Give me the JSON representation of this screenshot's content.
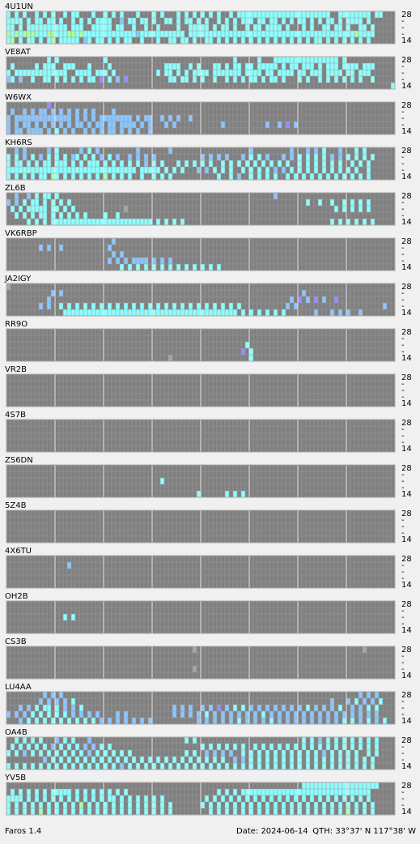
{
  "app": {
    "name": "Faros 1.4",
    "date": "Date: 2024-06-14",
    "qth": "QTH: 33°37' N  117°38' W"
  },
  "band_labels": [
    "28",
    "-",
    "-",
    "-",
    "14"
  ],
  "level_colors": [
    "#a6a6a6",
    "#9a8cff",
    "#8cc6ff",
    "#8cffff",
    "#a8ffa8"
  ],
  "panels": [
    {
      "name": "4U1UN",
      "rows": [
        "3.3.3..3.3.3..3.33...3..3.3.3...3...3.3...3.3.3.3.3.3..3.33333333333333333333333..33333333.33",
        "3333.3.33.33.3..3.3.3.3333..2.33.33.3..33.3.33.3.3..3.3.3.333.33.33.3.3.33.3.3.33.3.3333.3..",
        "33.3.3333333333.333..33333.33..3..3..3....3..33333.3.33.3..3.33.3333.3...3.3..33.33.3..33.3.",
        "43434443334433344343333333333333233333333333.3333333333333333333333333333333333333333343333.",
        "34.3.33.3.34.33333.23.33.3.3.33..3...3..33.33.3..33.3.3.3.3.3.3.3.3.3.3.3.3.33.3.3.3.3.3.3."
      ]
    },
    {
      "name": "VE8AT",
      "rows": [
        "..........3.3...........3...............................3.....3...3333333333333333.3.......",
        ".3.....3.333..333...3....3.............3333..3.3...33.3.33.33.33333.3.33.333.3.333.3333.333.",
        "3.3333333333333..3333.333.3..........3.33.3.3.3333.3333333.3333.33.3333.33.333.3333.33.333..",
        "23.2..3..33.3.3.3.3.33.1.3.2.1..........33.33.3.3..3..3.3.3.33.3.33.3...3.3..3.3.3.3.3.3..3.",
        "...............................................................................................3"
      ]
    },
    {
      "name": "W6WX",
      "rows": [
        "..........1...................................................................................",
        ".2..2.2.22.2.2.2.2.2.2....2.......................................................................",
        "2.22222222222222.2.2.2.22222222.2.22..2.2.2..2............................................",
        "2.2.22.2.2.2.2.2.22.2.22.22.2222.2.2...2.2...........2..........2..2.1.2.....................",
        "2.22.2222.2.3.2.2..2.2.2.22.2.2.2..2......................................................"
      ]
    },
    {
      "name": "KH6RS",
      "rows": [
        "..2.2.....2.3.....2.3.2.........2.......2...................2.........2...2.2.3...2...3.3...",
        "3.3.2.3.2.3.3.3.23.3.3.2.3.2..2.2.2.2...........2.2.2.2...2.3.3.2...2.2.3.3.3.3.2.2.3.3.3.3",
        "3.33.3.3.33.333.3.3.333.3.3.3.3.3.2.3.3...3.3.3.3.3..3.3.3.3.3.3.3.3.3..3.3.3.3.3.3..3.3.3.",
        "33333333333333333333333333333333.33333.3.3.3...2.2.3.3.3..3.3.3.3.2.2.3.3.3.3.3.3.3.3.3..3",
        "3.3.3.3.33.43.3.3.3.3.3.4.3.3.3..3..3.3.3...........3..3.2..3.3.3.3..3.3.3.3.3.3.3.3.3.3.3."
      ]
    },
    {
      "name": "ZL6B",
      "rows": [
        "..2..2.3.33.3.....................................................2.....................",
        "2.2.3.33.3.3.3.3..........................................................3..3..3..3.3.3.3",
        ".3.3.33333.33.3.3............0...................................................3.3.3.3.3.",
        "..3.3.3.33.3.3.3.3.3....3..3...............................................................",
        ".....3.3.3.3333333333333333333333333.3.3.3.3....................................3.3.3.3.3.3"
      ]
    },
    {
      "name": "VK6RBP",
      "rows": [
        "..........................2.....................................................",
        "........2.2..2...........2......................................................",
        "..........................2.2..............................................",
        ".........................2.2.2.2222.2.2.2...................................",
        "............................3.3.3.3.3.3.3.3.3.3.3.3.3........................"
      ]
    },
    {
      "name": "JA2IGY",
      "rows": [
        "0..............................................................................",
        "...........2.2...........................................................2.....................",
        "..........2...........................................................2.1.2.1.2..1..........",
        "........2.2..3.3.3.3.3.3.3.3.3.3.3.3.3.3.3.3.3.3.3.3.3.3.3...........2.2.....................2",
        "..............3333333333333333333333333333333333333333333.3.3.3.3.3.3.......2...2.2.2..2......"
      ]
    },
    {
      "name": "RR9O",
      "rows": [
        "..............................................................",
        "..............................................................",
        "...........................................................3...",
        "..........................................................1.3...",
        "........................................0...................3.."
      ]
    },
    {
      "name": "VR2B",
      "rows": [
        "......",
        "......",
        "......",
        "......",
        "......"
      ]
    },
    {
      "name": "4S7B",
      "rows": [
        "......",
        "......",
        "......",
        "......",
        "......"
      ]
    },
    {
      "name": "ZS6DN",
      "rows": [
        "......................................",
        "......................................",
        "......................................3.................",
        "...........................................................",
        "...............................................3......3.3.3....."
      ]
    },
    {
      "name": "5Z4B",
      "rows": [
        "......",
        "......",
        "......",
        "......",
        "......"
      ]
    },
    {
      "name": "4X6TU",
      "rows": [
        ".........................",
        "...............2.........",
        ".........................",
        ".........................",
        "........................."
      ]
    },
    {
      "name": "OH2B",
      "rows": [
        ".........................",
        ".........................",
        "..............3.3........",
        ".........................",
        "........................."
      ]
    },
    {
      "name": "CS3B",
      "rows": [
        "..............................................0.........................................0....",
        ".............................................................................................",
        ".............................................................................................",
        "..............................................0..............................................",
        "............................................................................................."
      ]
    },
    {
      "name": "LU4AA",
      "rows": [
        ".........2.2.2.........................................................................2.2.2.",
        "........2.2.2.2.3...............................................................2...2.3.2.2.3",
        "...2.2.3.33.3.2.2.3......................2.2.2..2.2.1.2.3.3.2.2.2.2.2.2.2.3.2.2.2.3..2.2.3.3",
        "2.2.2.3.3.3.3.3.2.2.2.2....2.2...........2.2.2.2.3.2.2.2.2.2.2.3.2.2.2.2.2.2.2.2.2.2.2.2.2.2",
        "...2.3.3.3.3.3.3.3.3.3.2.2.2.2.2.2.2...........2.2.2.2.2.3.2.2.2.3.2.2.2.2.2.2.2.2.3.3.2.3.2.3"
      ]
    },
    {
      "name": "OA4B",
      "rows": [
        "..3.3.3.3...2.3.3...2.......................3.3..........................3.3.2.3.3.3.3.3.3.3.",
        ".3.3.3.3.3.2.3.3.3.2.2.3.3......................3.3.3.3.3.3..3.3.3.3.3.3.3.3.3.3.3.3.3.3.3.3",
        "3.3.2.3.3.3.3.3.3.3.2.3.3.3.3.3.............3.3..2.2.2.2..3.3.3.3.3.3.3.3.3.3.2.3.3.3.3..3.3",
        ".........2.3.3.3.3.3.3.3.3.3.3.3.3.3.3.3.3.3.3.3.3.3.3..2.2.3.3.3.3.3.3.3.3.3.3.3.3.3.3.3.3",
        "3.3.3.3.3.3.3.3.3.3.3.3.3.3.2.3.3.3.3.3.3.3.3.3.3.3.3.3.3.3.3.3.3.3.3.3.3.3.3.3.3.3.3.3.3.3"
      ]
    },
    {
      "name": "YV5B",
      "rows": [
        ".........................................................................3333333333333333333",
        ".3.3.3.3.3.33333.3.3.3.3.3.3.3......................3.3.3.33333333333333333333333333333333",
        "3333.3.3.3.3.3.3.3.3.3.3.33.3.3.3.3.3.3..........3.3.3.3.3.3.3.3.3.3.3.3.3.3.3.3.3.3.3.3.3",
        "3.3.3.3.3.3.3.3.3.4.3.3.3.3.3.3.3.3.3.3.3.......3.3.3.3.3.3.3.3.3.3.3.3.3.3.3.3.3.3.3.3.3.3",
        "3.3.3.3.4.3.3.3.3.3.3.3.3.3.3.3.3.3.3.3.3.........3.3.3.3.3.3.3.3.3.3.3.3.3.3.3.3.3.4.3.3.3"
      ]
    }
  ]
}
